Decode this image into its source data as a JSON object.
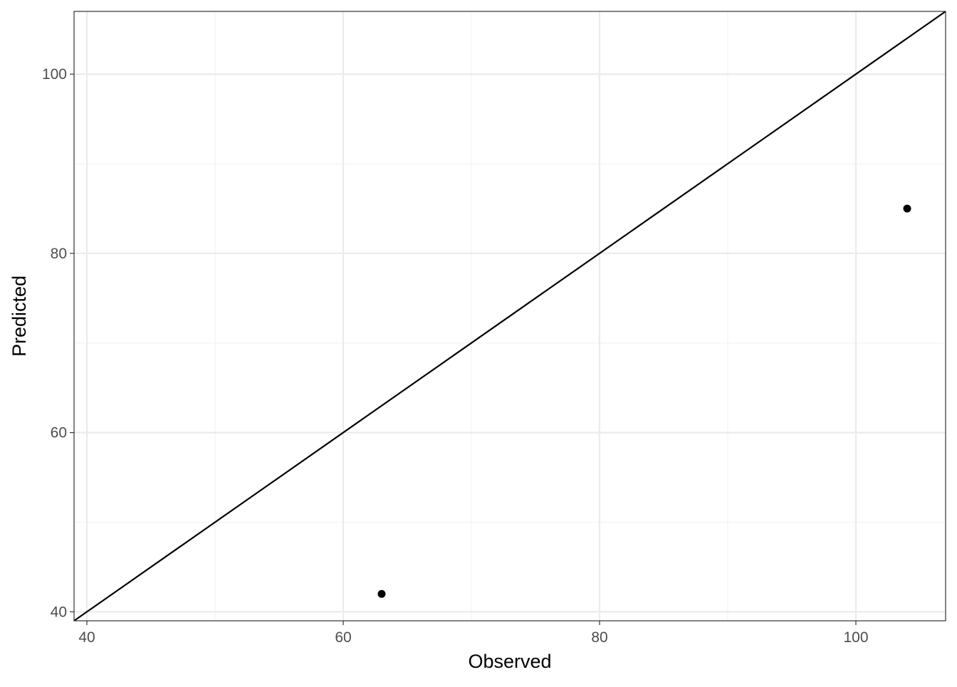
{
  "chart_data": {
    "type": "scatter",
    "title": "",
    "xlabel": "Observed",
    "ylabel": "Predicted",
    "xlim": [
      39,
      107
    ],
    "ylim": [
      39,
      107
    ],
    "x_ticks": [
      40,
      60,
      80,
      100
    ],
    "y_ticks": [
      40,
      60,
      80,
      100
    ],
    "x_tick_labels": [
      "40",
      "60",
      "80",
      "100"
    ],
    "y_tick_labels": [
      "40",
      "60",
      "80",
      "100"
    ],
    "grid": true,
    "legend": "none",
    "points": [
      {
        "x": 63,
        "y": 42
      },
      {
        "x": 104,
        "y": 85
      }
    ],
    "reference_line": {
      "type": "identity",
      "slope": 1,
      "intercept": 0
    },
    "colors": {
      "points": "#000000",
      "line": "#000000",
      "grid": "#ebebeb",
      "panel_border": "#333333"
    }
  }
}
